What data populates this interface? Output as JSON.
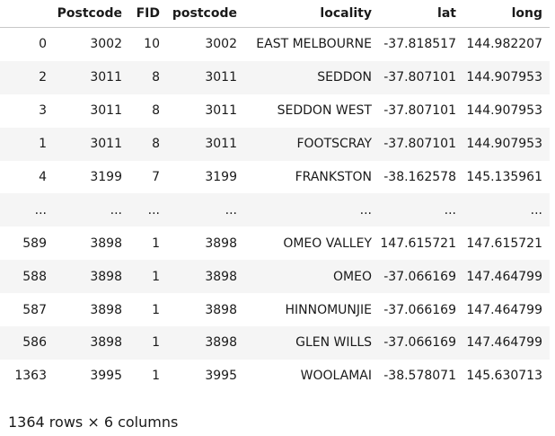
{
  "table": {
    "columns": [
      "",
      "Postcode",
      "FID",
      "postcode",
      "locality",
      "lat",
      "long"
    ],
    "rows": [
      [
        "0",
        "3002",
        "10",
        "3002",
        "EAST MELBOURNE",
        "-37.818517",
        "144.982207"
      ],
      [
        "2",
        "3011",
        "8",
        "3011",
        "SEDDON",
        "-37.807101",
        "144.907953"
      ],
      [
        "3",
        "3011",
        "8",
        "3011",
        "SEDDON WEST",
        "-37.807101",
        "144.907953"
      ],
      [
        "1",
        "3011",
        "8",
        "3011",
        "FOOTSCRAY",
        "-37.807101",
        "144.907953"
      ],
      [
        "4",
        "3199",
        "7",
        "3199",
        "FRANKSTON",
        "-38.162578",
        "145.135961"
      ],
      [
        "...",
        "...",
        "...",
        "...",
        "...",
        "...",
        "..."
      ],
      [
        "589",
        "3898",
        "1",
        "3898",
        "OMEO VALLEY",
        "147.615721",
        "147.615721"
      ],
      [
        "588",
        "3898",
        "1",
        "3898",
        "OMEO",
        "-37.066169",
        "147.464799"
      ],
      [
        "587",
        "3898",
        "1",
        "3898",
        "HINNOMUNJIE",
        "-37.066169",
        "147.464799"
      ],
      [
        "586",
        "3898",
        "1",
        "3898",
        "GLEN WILLS",
        "-37.066169",
        "147.464799"
      ],
      [
        "1363",
        "3995",
        "1",
        "3995",
        "WOOLAMAI",
        "-38.578071",
        "145.630713"
      ]
    ]
  },
  "shape_text": "1364 rows × 6 columns"
}
